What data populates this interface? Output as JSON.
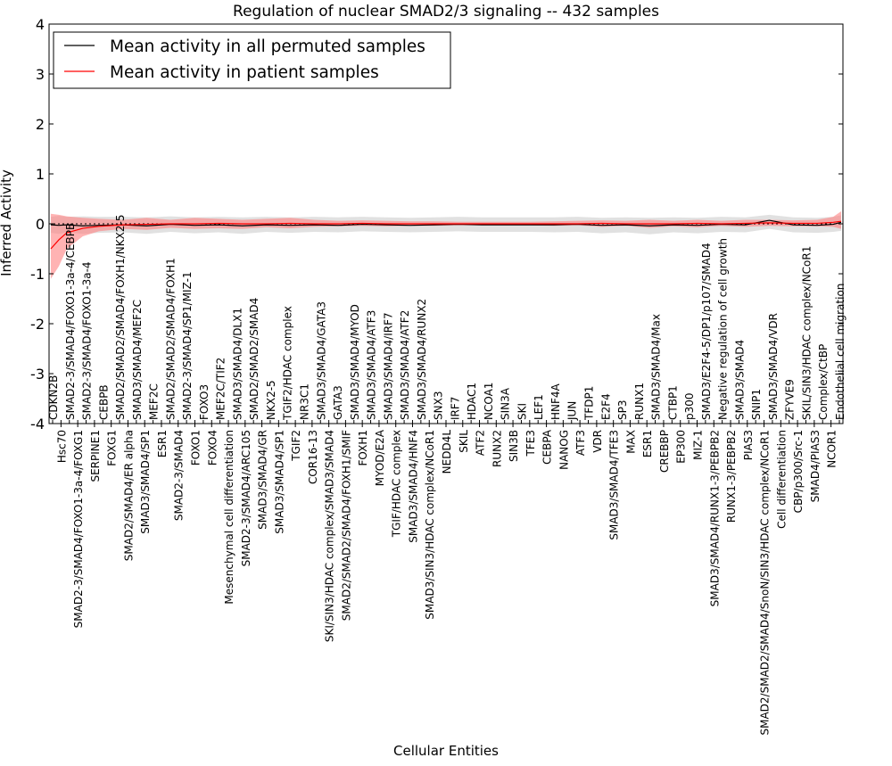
{
  "chart_data": {
    "type": "line",
    "title": "Regulation of nuclear SMAD2/3 signaling -- 432 samples",
    "xlabel": "Cellular Entities",
    "ylabel": "Inferred Activity",
    "ylim": [
      -4,
      4
    ],
    "xlim": [
      0,
      99
    ],
    "yticks": [
      -4,
      -3,
      -2,
      -1,
      0,
      1,
      2,
      3,
      4
    ],
    "legend_placement": "top-left",
    "colors": {
      "perm": "#000000",
      "patient": "#ff0000",
      "perm_band": "#d9d9d9",
      "patient_band": "#ff8080"
    },
    "x": [
      0,
      1,
      2,
      4,
      6,
      9,
      12,
      15,
      18,
      21,
      24,
      27,
      30,
      33,
      36,
      39,
      42,
      45,
      48,
      51,
      54,
      57,
      60,
      63,
      66,
      69,
      72,
      75,
      78,
      81,
      84,
      87,
      90,
      93,
      96,
      98,
      99
    ],
    "series": [
      {
        "name": "Mean activity in all permuted samples",
        "values": [
          -0.02,
          -0.03,
          -0.02,
          -0.04,
          -0.03,
          -0.02,
          -0.04,
          -0.01,
          -0.03,
          -0.02,
          -0.04,
          -0.02,
          -0.03,
          -0.02,
          -0.03,
          -0.01,
          -0.02,
          -0.03,
          -0.02,
          -0.01,
          -0.02,
          -0.02,
          -0.02,
          -0.02,
          -0.01,
          -0.03,
          -0.02,
          -0.04,
          -0.02,
          -0.03,
          -0.01,
          -0.02,
          0.07,
          -0.02,
          -0.03,
          -0.01,
          0.03
        ],
        "lower": [
          -0.18,
          -0.2,
          -0.17,
          -0.2,
          -0.18,
          -0.17,
          -0.2,
          -0.16,
          -0.19,
          -0.17,
          -0.2,
          -0.16,
          -0.18,
          -0.16,
          -0.17,
          -0.15,
          -0.16,
          -0.17,
          -0.16,
          -0.15,
          -0.16,
          -0.16,
          -0.16,
          -0.17,
          -0.16,
          -0.19,
          -0.17,
          -0.21,
          -0.17,
          -0.19,
          -0.16,
          -0.17,
          -0.1,
          -0.17,
          -0.18,
          -0.16,
          -0.14
        ],
        "upper": [
          0.14,
          0.16,
          0.14,
          0.15,
          0.14,
          0.14,
          0.13,
          0.15,
          0.13,
          0.14,
          0.13,
          0.14,
          0.13,
          0.14,
          0.13,
          0.14,
          0.13,
          0.12,
          0.13,
          0.14,
          0.13,
          0.13,
          0.13,
          0.13,
          0.14,
          0.12,
          0.13,
          0.12,
          0.13,
          0.12,
          0.14,
          0.13,
          0.18,
          0.13,
          0.12,
          0.14,
          0.17
        ]
      },
      {
        "name": "Mean activity in patient samples",
        "values": [
          -0.5,
          -0.32,
          -0.18,
          -0.09,
          -0.05,
          -0.02,
          -0.01,
          0,
          0,
          0.01,
          0,
          0,
          0.01,
          0,
          0,
          0.01,
          0,
          0,
          0,
          0,
          0,
          0,
          0,
          0,
          0,
          0.01,
          0,
          0,
          0,
          0.01,
          0,
          0.01,
          0.02,
          0.01,
          0.01,
          0.03,
          0.05
        ],
        "lower": [
          -1.1,
          -0.85,
          -0.5,
          -0.25,
          -0.15,
          -0.1,
          -0.12,
          -0.08,
          -0.1,
          -0.09,
          -0.1,
          -0.07,
          -0.09,
          -0.06,
          -0.05,
          -0.04,
          -0.05,
          -0.04,
          -0.04,
          -0.03,
          -0.03,
          -0.03,
          -0.03,
          -0.04,
          -0.03,
          -0.06,
          -0.04,
          -0.08,
          -0.05,
          -0.07,
          -0.04,
          -0.06,
          -0.04,
          -0.05,
          -0.05,
          -0.06,
          -0.1
        ],
        "upper": [
          0.2,
          0.18,
          0.15,
          0.12,
          0.1,
          0.08,
          0.12,
          0.08,
          0.12,
          0.1,
          0.08,
          0.1,
          0.12,
          0.08,
          0.06,
          0.07,
          0.06,
          0.05,
          0.05,
          0.04,
          0.04,
          0.04,
          0.04,
          0.05,
          0.06,
          0.07,
          0.06,
          0.08,
          0.06,
          0.08,
          0.06,
          0.08,
          0.08,
          0.07,
          0.08,
          0.14,
          0.25
        ]
      }
    ],
    "x_tick_labels": [
      "CDKN2B",
      "Hsc70",
      "SMAD2-3/SMAD4/FOXO1-3a-4/CEBPB",
      "SMAD2-3/SMAD4/FOXO1-3a-4/FOXG1",
      "SMAD2-3/SMAD4/FOXO1-3a-4",
      "SERPINE1",
      "CEBPB",
      "FOXG1",
      "SMAD2/SMAD2/SMAD4/FOXH1/NKX2-5",
      "SMAD2/SMAD4/ER alpha",
      "SMAD3/SMAD4/MEF2C",
      "SMAD3/SMAD4/SP1",
      "MEF2C",
      "ESR1",
      "SMAD2/SMAD2/SMAD4/FOXH1",
      "SMAD2-3/SMAD4",
      "SMAD2-3/SMAD4/SP1/MIZ-1",
      "FOXO1",
      "FOXO3",
      "FOXO4",
      "MEF2C/TIF2",
      "Mesenchymal cell differentiation",
      "SMAD3/SMAD4/DLX1",
      "SMAD2-3/SMAD4/ARC105",
      "SMAD2/SMAD2/SMAD4",
      "SMAD3/SMAD4/GR",
      "NKX2-5",
      "SMAD3/SMAD4/SP1",
      "TGIF2/HDAC complex",
      "TGIF2",
      "NR3C1",
      "COR16-13",
      "SMAD3/SMAD4/GATA3",
      "SKI/SIN3/HDAC complex/SMAD3/SMAD4",
      "GATA3",
      "SMAD2/SMAD2/SMAD4/FOXH1/SMIF",
      "SMAD3/SMAD4/MYOD",
      "FOXH1",
      "SMAD3/SMAD4/ATF3",
      "MYOD/E2A",
      "SMAD3/SMAD4/IRF7",
      "TGIF/HDAC complex",
      "SMAD3/SMAD4/ATF2",
      "SMAD3/SMAD4/HNF4",
      "SMAD3/SMAD4/RUNX2",
      "SMAD3/SIN3/HDAC complex/NCoR1",
      "SNX3",
      "NEDD4L",
      "IRF7",
      "SKIL",
      "HDAC1",
      "ATF2",
      "NCOA1",
      "RUNX2",
      "SIN3A",
      "SIN3B",
      "SKI",
      "TFE3",
      "LEF1",
      "CEBPA",
      "HNF4A",
      "NANOG",
      "JUN",
      "ATF3",
      "TFDP1",
      "VDR",
      "E2F4",
      "SMAD3/SMAD4/TFE3",
      "SP3",
      "MAX",
      "RUNX1",
      "ESR1",
      "SMAD3/SMAD4/Max",
      "CREBBP",
      "CTBP1",
      "EP300",
      "p300",
      "MIZ-1",
      "SMAD3/E2F4-5/DP1/p107/SMAD4",
      "SMAD3/SMAD4/RUNX1-3/PEBPB2",
      "Negative regulation of cell growth",
      "RUNX1-3/PEBPB2",
      "SMAD3/SMAD4",
      "PIAS3",
      "SNIP1",
      "SMAD2/SMAD2/SMAD4/SnoN/SIN3/HDAC complex/NCoR1",
      "SMAD3/SMAD4/VDR",
      "Cell differentiation",
      "ZFYVE9",
      "CBP/p300/Src-1",
      "SKIL/SIN3/HDAC complex/NCoR1",
      "SMAD4/PIAS3",
      "Complex/CtBP",
      "NCOR1",
      "Endothelial cell migration"
    ]
  }
}
